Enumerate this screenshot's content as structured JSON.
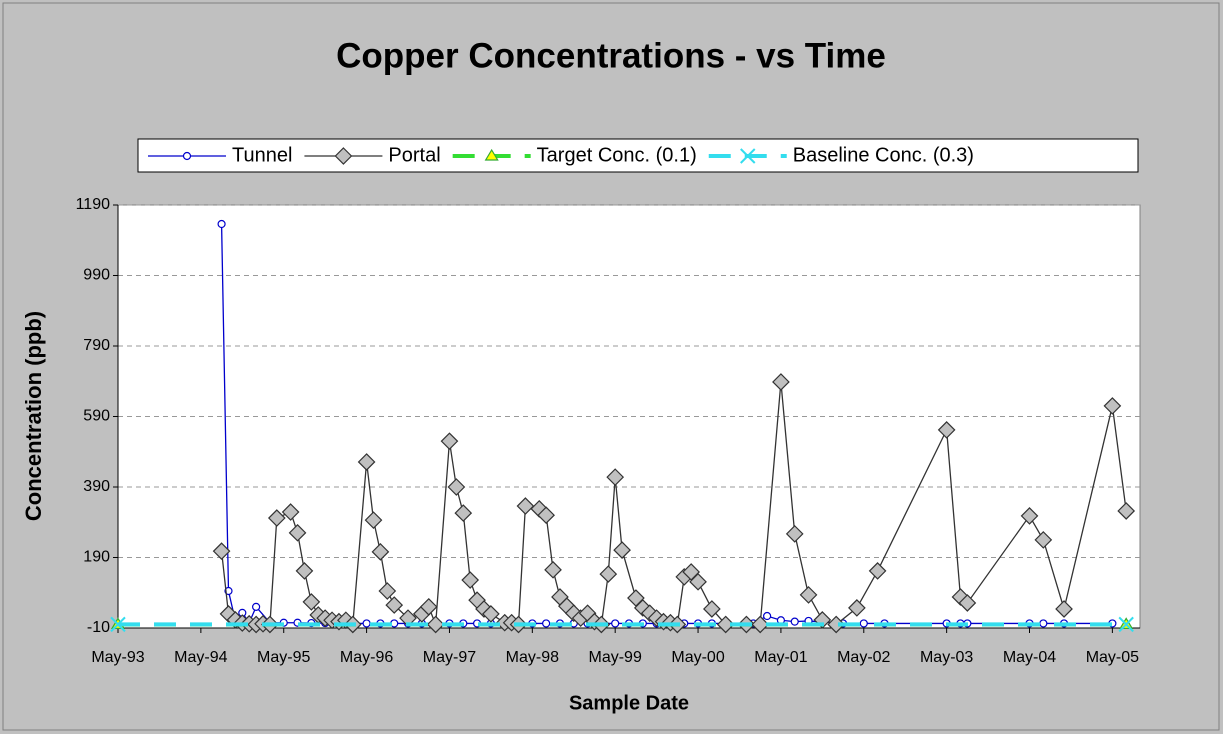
{
  "chart_data": {
    "type": "line",
    "title": "Copper Concentrations - vs Time",
    "x_label": "Sample Date",
    "y_label": "Concentration (ppb)",
    "legend": "top",
    "grid": true,
    "xlim": [
      "1993-05",
      "2005-09"
    ],
    "xticks": [
      {
        "value": "1993-05",
        "label": "May-93"
      },
      {
        "value": "1994-05",
        "label": "May-94"
      },
      {
        "value": "1995-05",
        "label": "May-95"
      },
      {
        "value": "1996-05",
        "label": "May-96"
      },
      {
        "value": "1997-05",
        "label": "May-97"
      },
      {
        "value": "1998-05",
        "label": "May-98"
      },
      {
        "value": "1999-05",
        "label": "May-99"
      },
      {
        "value": "2000-05",
        "label": "May-00"
      },
      {
        "value": "2001-05",
        "label": "May-01"
      },
      {
        "value": "2002-05",
        "label": "May-02"
      },
      {
        "value": "2003-05",
        "label": "May-03"
      },
      {
        "value": "2004-05",
        "label": "May-04"
      },
      {
        "value": "2005-05",
        "label": "May-05"
      }
    ],
    "ylim": [
      -10,
      1190
    ],
    "yticks": [
      -10,
      190,
      390,
      590,
      790,
      990,
      1190
    ],
    "series": [
      {
        "name": "Tunnel",
        "color": "#0000cc",
        "marker": "circle",
        "x": [
          "1994-08",
          "1994-09",
          "1994-10",
          "1994-11",
          "1994-12",
          "1995-01",
          "1995-03",
          "1995-05",
          "1995-07",
          "1995-09",
          "1995-11",
          "1996-01",
          "1996-03",
          "1996-05",
          "1996-07",
          "1996-09",
          "1996-11",
          "1997-01",
          "1997-03",
          "1997-05",
          "1997-07",
          "1997-09",
          "1997-11",
          "1998-01",
          "1998-03",
          "1998-05",
          "1998-07",
          "1998-09",
          "1998-11",
          "1999-01",
          "1999-03",
          "1999-05",
          "1999-07",
          "1999-09",
          "1999-11",
          "2000-01",
          "2000-03",
          "2000-05",
          "2000-07",
          "2000-09",
          "2001-01",
          "2001-03",
          "2001-05",
          "2001-07",
          "2001-09",
          "2002-02",
          "2002-05",
          "2002-08",
          "2003-05",
          "2003-07",
          "2003-08",
          "2004-05",
          "2004-07",
          "2004-10",
          "2005-05"
        ],
        "values": [
          1136,
          95,
          10,
          33,
          5,
          50,
          5,
          5,
          5,
          4,
          4,
          3,
          3,
          3,
          3,
          3,
          3,
          3,
          3,
          3,
          3,
          3,
          3,
          3,
          3,
          3,
          3,
          3,
          3,
          3,
          3,
          3,
          3,
          3,
          3,
          3,
          3,
          3,
          3,
          3,
          3,
          24,
          12,
          8,
          10,
          3,
          3,
          3,
          3,
          3,
          3,
          3,
          3,
          3,
          3
        ]
      },
      {
        "name": "Portal",
        "color": "#333333",
        "marker": "diamond",
        "x": [
          "1994-08",
          "1994-09",
          "1994-10",
          "1994-11",
          "1994-12",
          "1995-01",
          "1995-02",
          "1995-03",
          "1995-04",
          "1995-06",
          "1995-07",
          "1995-08",
          "1995-09",
          "1995-10",
          "1995-11",
          "1995-12",
          "1996-01",
          "1996-02",
          "1996-03",
          "1996-05",
          "1996-06",
          "1996-07",
          "1996-08",
          "1996-09",
          "1996-11",
          "1997-01",
          "1997-02",
          "1997-03",
          "1997-05",
          "1997-06",
          "1997-07",
          "1997-08",
          "1997-09",
          "1997-10",
          "1997-11",
          "1998-01",
          "1998-02",
          "1998-03",
          "1998-04",
          "1998-06",
          "1998-07",
          "1998-08",
          "1998-09",
          "1998-10",
          "1998-11",
          "1998-12",
          "1999-01",
          "1999-02",
          "1999-03",
          "1999-04",
          "1999-05",
          "1999-06",
          "1999-08",
          "1999-09",
          "1999-10",
          "1999-11",
          "1999-12",
          "2000-01",
          "2000-02",
          "2000-03",
          "2000-04",
          "2000-05",
          "2000-07",
          "2000-09",
          "2000-12",
          "2001-02",
          "2001-05",
          "2001-07",
          "2001-09",
          "2001-11",
          "2002-01",
          "2002-04",
          "2002-07",
          "2003-05",
          "2003-07",
          "2003-08",
          "2004-05",
          "2004-07",
          "2004-10",
          "2005-05",
          "2005-07"
        ],
        "values": [
          208,
          30,
          13,
          4,
          2,
          0,
          2,
          0,
          302,
          319,
          260,
          152,
          64,
          27,
          18,
          12,
          8,
          12,
          0,
          461,
          296,
          206,
          95,
          55,
          18,
          30,
          50,
          0,
          520,
          390,
          316,
          126,
          69,
          44,
          30,
          5,
          5,
          0,
          336,
          328,
          310,
          155,
          78,
          52,
          32,
          18,
          32,
          8,
          0,
          143,
          418,
          211,
          75,
          47,
          32,
          18,
          8,
          5,
          0,
          135,
          149,
          121,
          44,
          0,
          0,
          0,
          688,
          257,
          84,
          13,
          0,
          47,
          152,
          552,
          78,
          61,
          308,
          240,
          44,
          620,
          322
        ]
      },
      {
        "name": "Target Conc. (0.1)",
        "color": "#33dd33",
        "marker": "triangle",
        "dash": true,
        "x": [
          "1993-05",
          "2005-07"
        ],
        "values": [
          0.1,
          0.1
        ]
      },
      {
        "name": "Baseline Conc. (0.3)",
        "color": "#33ddee",
        "marker": "x",
        "dash": true,
        "x": [
          "1993-05",
          "2005-07"
        ],
        "values": [
          0.3,
          0.3
        ]
      }
    ]
  }
}
